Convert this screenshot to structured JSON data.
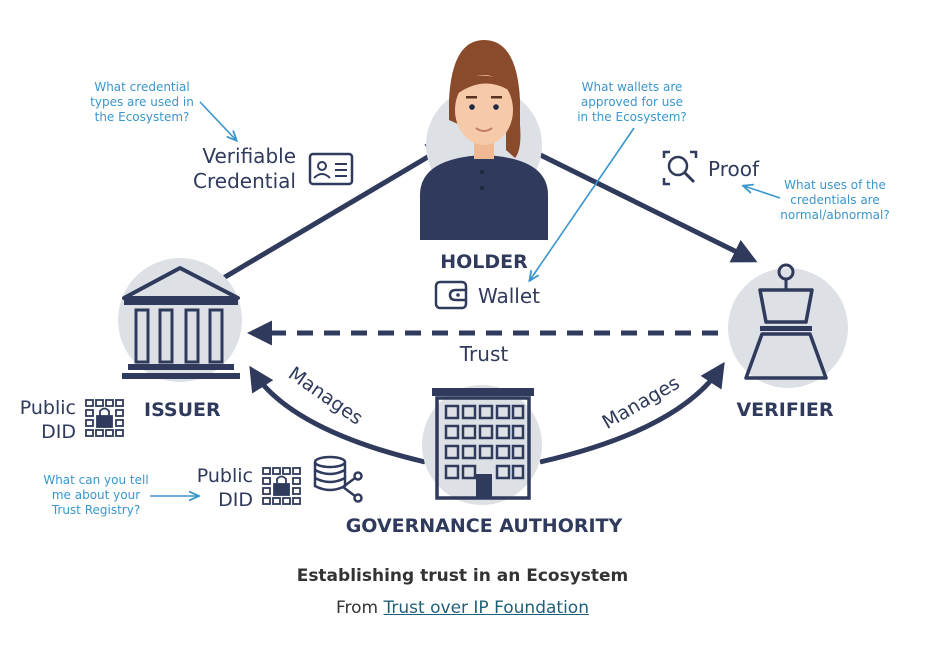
{
  "nodes": {
    "holder": "HOLDER",
    "issuer": "ISSUER",
    "verifier": "VERIFIER",
    "governance": "GOVERNANCE AUTHORITY"
  },
  "labels": {
    "verifiable_line1": "Verifiable",
    "verifiable_line2": "Credential",
    "proof": "Proof",
    "wallet": "Wallet",
    "trust": "Trust",
    "manages_left": "Manages",
    "manages_right": "Manages",
    "public_did_issuer_line1": "Public",
    "public_did_issuer_line2": "DID",
    "public_did_gov_line1": "Public",
    "public_did_gov_line2": "DID"
  },
  "questions": {
    "credential_types": [
      "What credential",
      "types are used in",
      "the Ecosystem?"
    ],
    "wallets": [
      "What wallets are",
      "approved for use",
      "in the Ecosystem?"
    ],
    "uses": [
      "What uses of the",
      "credentials are",
      "normal/abnormal?"
    ],
    "registry": [
      "What can you tell",
      "me about your",
      "Trust Registry?"
    ]
  },
  "caption": {
    "title": "Establishing trust in an Ecosystem",
    "from_prefix": "From",
    "link_text": "Trust over IP Foundation"
  },
  "colors": {
    "navy": "#2f3a5c",
    "question_blue": "#3a96cc",
    "circle_gray": "#dde1e6",
    "hair": "#8a4a2c",
    "skin": "#f6c9a8"
  }
}
